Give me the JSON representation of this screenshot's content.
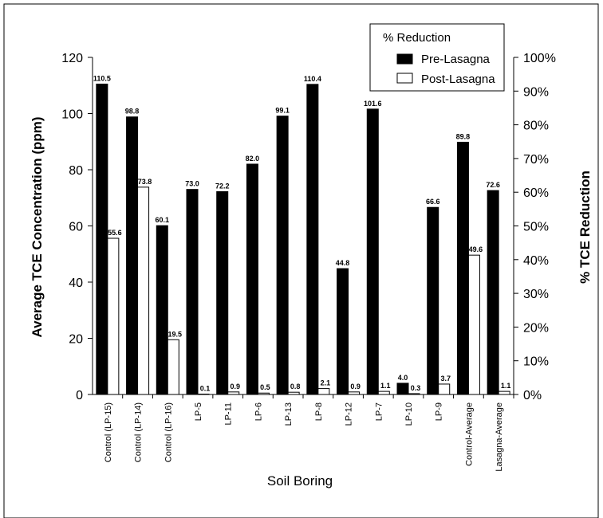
{
  "chart_data": {
    "type": "bar",
    "title": "",
    "xlabel": "Soil Boring",
    "ylabel": "Average TCE Concentration (ppm)",
    "y2label": "% TCE Reduction",
    "ylim": [
      0,
      120
    ],
    "yticks": [
      "0",
      "20",
      "40",
      "60",
      "80",
      "100",
      "120"
    ],
    "y2lim": [
      0,
      100
    ],
    "y2ticks": [
      "0%",
      "10%",
      "20%",
      "30%",
      "40%",
      "50%",
      "60%",
      "70%",
      "80%",
      "90%",
      "100%"
    ],
    "categories": [
      "Control (LP-15)",
      "Control (LP-14)",
      "Control (LP-16)",
      "LP-5",
      "LP-11",
      "LP-6",
      "LP-13",
      "LP-8",
      "LP-12",
      "LP-7",
      "LP-10",
      "LP-9",
      "Control-Average",
      "Lasagna-Average"
    ],
    "series": [
      {
        "name": "Pre-Lasagna",
        "color": "#000000",
        "values": [
          110.5,
          98.8,
          60.1,
          73.0,
          72.2,
          82.0,
          99.1,
          110.4,
          44.8,
          101.6,
          4.0,
          66.6,
          89.8,
          72.6
        ],
        "labels": [
          "110.5",
          "98.8",
          "60.1",
          "73.0",
          "72.2",
          "82.0",
          "99.1",
          "110.4",
          "44.8",
          "101.6",
          "4.0",
          "66.6",
          "89.8",
          "72.6"
        ]
      },
      {
        "name": "Post-Lasagna",
        "color": "#ffffff",
        "values": [
          55.6,
          73.8,
          19.5,
          0.1,
          0.9,
          0.5,
          0.8,
          2.1,
          0.9,
          1.1,
          0.3,
          3.7,
          49.6,
          1.1
        ],
        "labels": [
          "55.6",
          "73.8",
          "19.5",
          "0.1",
          "0.9",
          "0.5",
          "0.8",
          "2.1",
          "0.9",
          "1.1",
          "0.3",
          "3.7",
          "49.6",
          "1.1"
        ]
      }
    ],
    "legend": {
      "title": "% Reduction",
      "position": "top-right"
    },
    "grid": false
  }
}
